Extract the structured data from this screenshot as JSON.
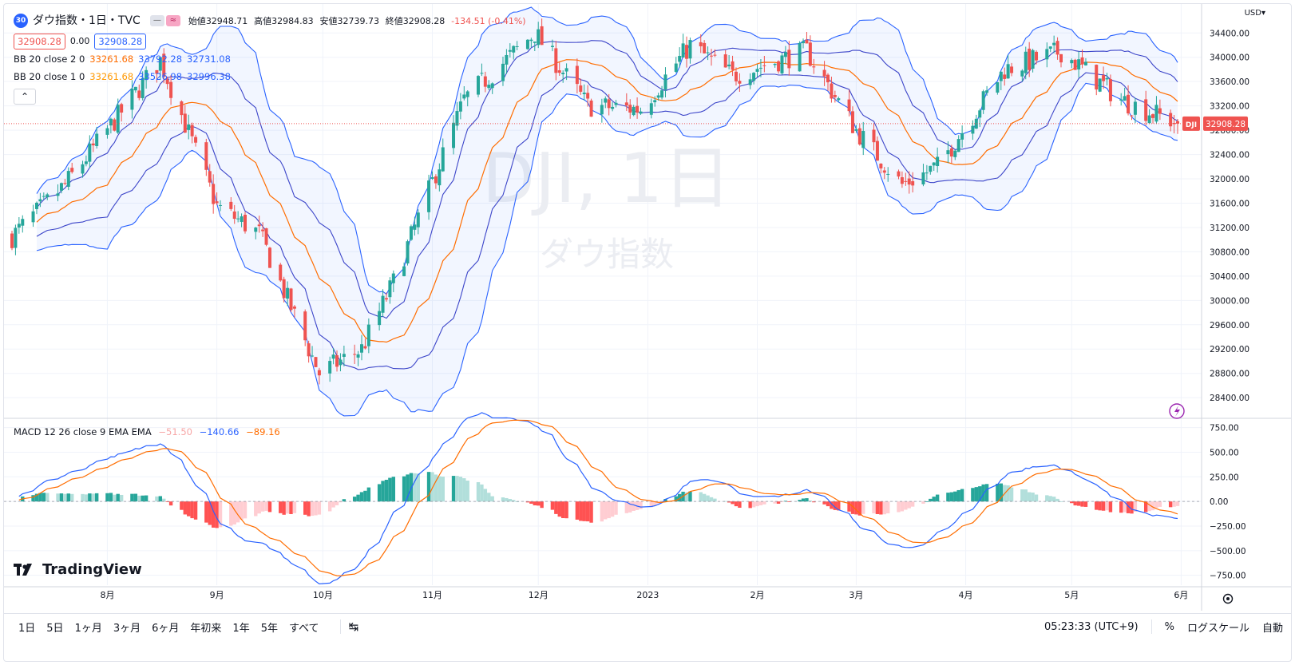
{
  "header": {
    "badge": "30",
    "title": "ダウ指数・1日・TVC",
    "ohlc": [
      {
        "label": "始値",
        "value": "32948.71"
      },
      {
        "label": "高値",
        "value": "32984.83"
      },
      {
        "label": "安値",
        "value": "32739.73"
      },
      {
        "label": "終値",
        "value": "32908.28"
      },
      {
        "label": "",
        "value": "-134.51 (-0.41%)"
      }
    ],
    "box_left": "32908.28",
    "box_mid": "0.00",
    "box_right": "32908.28"
  },
  "indicators": {
    "bb2": {
      "name": "BB 20 close 2 0",
      "basis": "33261.68",
      "upper": "33792.28",
      "lower": "32731.08"
    },
    "bb1": {
      "name": "BB 20 close 1 0",
      "basis": "33261.68",
      "upper": "33526.98",
      "lower": "32996.38"
    },
    "macd": {
      "name": "MACD 12 26 close 9 EMA EMA",
      "hist": "−51.50",
      "macd": "−140.66",
      "signal": "−89.16"
    }
  },
  "watermark": {
    "symbol": "DJI, 1日",
    "name": "ダウ指数"
  },
  "price_axis": {
    "currency": "USD",
    "labels": [
      "34400.00",
      "34000.00",
      "33600.00",
      "33200.00",
      "32800.00",
      "32400.00",
      "32000.00",
      "31600.00",
      "31200.00",
      "30800.00",
      "30400.00",
      "30000.00",
      "29600.00",
      "29200.00",
      "28800.00",
      "28400.00"
    ],
    "last_tag": "DJI",
    "last_value": "32908.28"
  },
  "macd_axis": {
    "labels": [
      "750.00",
      "500.00",
      "250.00",
      "0.00",
      "−250.00",
      "−500.00",
      "−750.00"
    ]
  },
  "time_axis": [
    "8月",
    "9月",
    "10月",
    "11月",
    "12月",
    "2023",
    "2月",
    "3月",
    "4月",
    "5月",
    "6月"
  ],
  "bottom": {
    "timeframes": [
      "1日",
      "5日",
      "1ヶ月",
      "3ヶ月",
      "6ヶ月",
      "年初来",
      "1年",
      "5年",
      "すべて"
    ],
    "clock": "05:23:33 (UTC+9)",
    "percent": "%",
    "log": "ログスケール",
    "auto": "自動"
  },
  "logo": "TradingView",
  "colors": {
    "up": "#26a69a",
    "down": "#ef5350",
    "bb_band": "#2962ff",
    "bb_basis": "#ff6d00",
    "macd": "#2962ff",
    "signal": "#ff6d00"
  },
  "chart_data": [
    {
      "type": "candlestick",
      "title": "ダウ指数・1日・TVC",
      "x_range": [
        "2022-07-05",
        "2023-05-31"
      ],
      "ylim": [
        28400,
        34600
      ],
      "anchors": [
        [
          "2022-07-05",
          31050
        ],
        [
          "2022-07-20",
          31900
        ],
        [
          "2022-08-01",
          32800
        ],
        [
          "2022-08-16",
          33950
        ],
        [
          "2022-09-01",
          31550
        ],
        [
          "2022-09-13",
          31100
        ],
        [
          "2022-09-30",
          28800
        ],
        [
          "2022-10-12",
          29200
        ],
        [
          "2022-10-21",
          30300
        ],
        [
          "2022-11-10",
          33300
        ],
        [
          "2022-11-30",
          34400
        ],
        [
          "2022-12-15",
          33200
        ],
        [
          "2022-12-30",
          33150
        ],
        [
          "2023-01-13",
          34200
        ],
        [
          "2023-01-25",
          33700
        ],
        [
          "2023-02-15",
          34100
        ],
        [
          "2023-03-01",
          32800
        ],
        [
          "2023-03-14",
          31900
        ],
        [
          "2023-03-24",
          32200
        ],
        [
          "2023-04-12",
          33800
        ],
        [
          "2023-04-28",
          34100
        ],
        [
          "2023-05-15",
          33300
        ],
        [
          "2023-05-31",
          32908
        ]
      ],
      "last": {
        "open": 32948.71,
        "high": 32984.83,
        "low": 32739.73,
        "close": 32908.28
      }
    },
    {
      "type": "macd",
      "ylim": [
        -850,
        800
      ],
      "last": {
        "histogram": -51.5,
        "macd": -140.66,
        "signal": -89.16
      }
    }
  ]
}
